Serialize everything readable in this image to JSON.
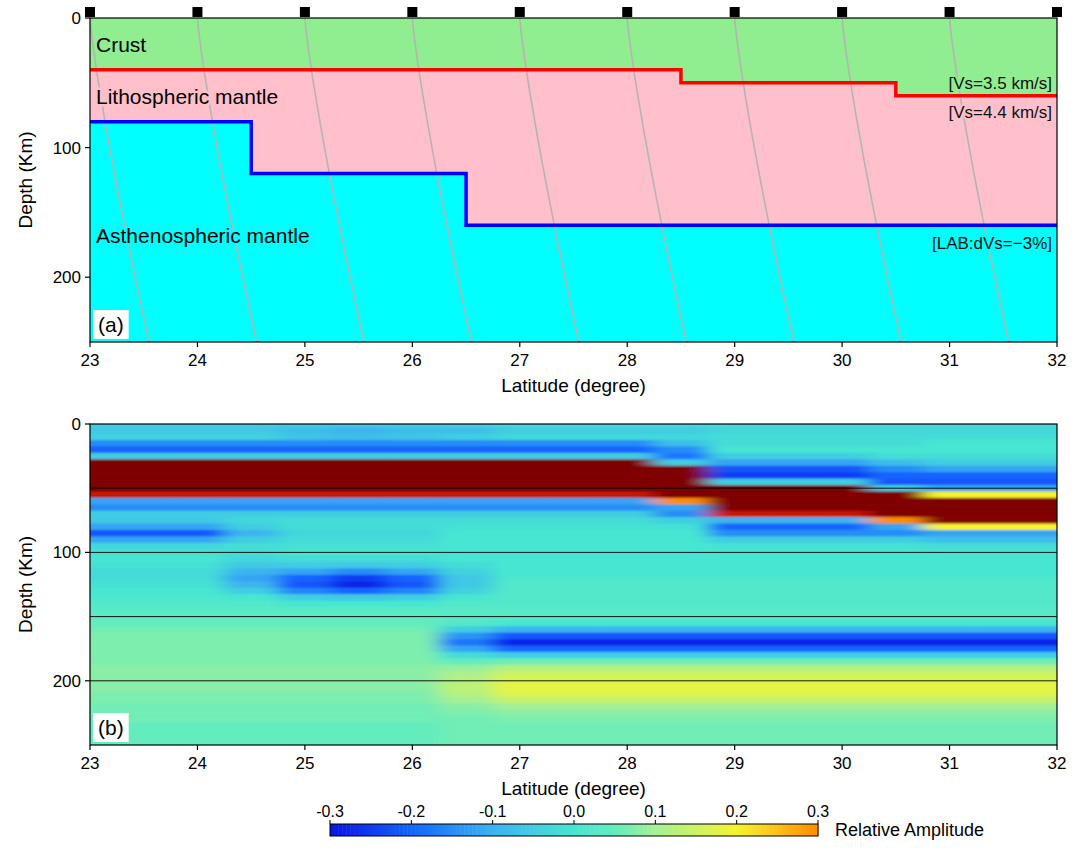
{
  "chart_data": [
    {
      "type": "model",
      "panel_label": "(a)",
      "x_label": "Latitude (degree)",
      "y_label": "Depth (Km)",
      "xlim": [
        23,
        32
      ],
      "ylim": [
        0,
        250
      ],
      "xticks": [
        23,
        24,
        25,
        26,
        27,
        28,
        29,
        30,
        31,
        32
      ],
      "yticks": [
        0,
        100,
        200
      ],
      "layers": [
        {
          "name": "Crust",
          "color": "#90ee90"
        },
        {
          "name": "Lithospheric mantle",
          "color": "#ffc0cb"
        },
        {
          "name": "Asthenospheric mantle",
          "color": "#00ffff"
        }
      ],
      "boundaries": [
        {
          "color": "#ff0000",
          "x_edges": [
            23,
            28.5,
            30.5,
            32
          ],
          "values": [
            40,
            50,
            60
          ]
        },
        {
          "color": "#0000ff",
          "x_edges": [
            23,
            24.5,
            26.5,
            32
          ],
          "values": [
            80,
            120,
            160
          ]
        }
      ],
      "annotations": [
        "[Vs=3.5 km/s]",
        "[Vs=4.4 km/s]",
        "[LAB:dVs=−3%]"
      ],
      "stations": [
        23,
        24,
        25,
        26,
        27,
        28,
        29,
        30,
        31,
        32
      ],
      "ray_end_offset": 0.55
    },
    {
      "type": "heatmap",
      "panel_label": "(b)",
      "x_label": "Latitude (degree)",
      "y_label": "Depth (Km)",
      "xlim": [
        23,
        32
      ],
      "ylim": [
        0,
        250
      ],
      "xticks": [
        23,
        24,
        25,
        26,
        27,
        28,
        29,
        30,
        31,
        32
      ],
      "yticks": [
        0,
        100,
        200
      ],
      "reference_depths": [
        50,
        100,
        150,
        200
      ],
      "x": [
        23,
        23.5,
        24,
        24.5,
        25,
        25.5,
        26,
        26.5,
        27,
        27.5,
        28,
        28.5,
        29,
        29.5,
        30,
        30.5,
        31,
        31.5,
        32
      ],
      "y": [
        0,
        5,
        10,
        15,
        20,
        25,
        30,
        35,
        40,
        45,
        50,
        55,
        60,
        65,
        70,
        75,
        80,
        85,
        90,
        95,
        100,
        105,
        110,
        115,
        120,
        125,
        130,
        135,
        140,
        145,
        150,
        155,
        160,
        165,
        170,
        175,
        180,
        185,
        190,
        195,
        200,
        205,
        210,
        215,
        220,
        225,
        230,
        235,
        240,
        245,
        250
      ],
      "values": [
        [
          -0.05,
          -0.06,
          -0.04,
          -0.15,
          -0.2,
          -0.05,
          0.6,
          1.0,
          1.0,
          1.0,
          0.9,
          0.4,
          -0.12,
          -0.15,
          -0.05,
          -0.06,
          -0.12,
          -0.22,
          -0.12,
          -0.03,
          -0.01,
          0.0,
          -0.01,
          -0.02,
          -0.02,
          -0.01,
          0.0,
          0.01,
          0.02,
          0.03,
          0.04,
          0.05,
          0.06,
          0.07,
          0.07,
          0.07,
          0.07,
          0.07,
          0.08,
          0.08,
          0.08,
          0.08,
          0.07,
          0.07,
          0.06,
          0.06,
          0.06,
          0.05,
          0.05,
          0.05,
          0.05
        ],
        [
          -0.05,
          -0.06,
          -0.04,
          -0.15,
          -0.2,
          -0.05,
          0.6,
          1.0,
          1.0,
          1.0,
          0.9,
          0.4,
          -0.12,
          -0.15,
          -0.05,
          -0.06,
          -0.12,
          -0.22,
          -0.12,
          -0.03,
          -0.01,
          0.0,
          -0.01,
          -0.02,
          -0.02,
          -0.01,
          0.0,
          0.01,
          0.02,
          0.03,
          0.04,
          0.05,
          0.06,
          0.07,
          0.07,
          0.07,
          0.07,
          0.07,
          0.08,
          0.08,
          0.08,
          0.08,
          0.07,
          0.07,
          0.06,
          0.06,
          0.06,
          0.05,
          0.05,
          0.05,
          0.05
        ],
        [
          -0.05,
          -0.06,
          -0.04,
          -0.15,
          -0.2,
          -0.05,
          0.6,
          1.0,
          1.0,
          1.0,
          0.9,
          0.4,
          -0.12,
          -0.15,
          -0.05,
          -0.06,
          -0.12,
          -0.22,
          -0.12,
          -0.03,
          -0.01,
          0.0,
          -0.01,
          -0.02,
          -0.02,
          -0.01,
          0.0,
          0.01,
          0.02,
          0.03,
          0.04,
          0.05,
          0.06,
          0.07,
          0.07,
          0.07,
          0.07,
          0.07,
          0.08,
          0.08,
          0.08,
          0.08,
          0.07,
          0.07,
          0.06,
          0.06,
          0.06,
          0.05,
          0.05,
          0.05,
          0.05
        ],
        [
          -0.05,
          -0.06,
          -0.04,
          -0.15,
          -0.2,
          -0.05,
          0.6,
          1.0,
          1.0,
          1.0,
          0.9,
          0.4,
          -0.12,
          -0.15,
          -0.05,
          -0.03,
          -0.05,
          -0.1,
          -0.05,
          -0.02,
          -0.02,
          -0.03,
          -0.06,
          -0.1,
          -0.12,
          -0.1,
          -0.05,
          0.0,
          0.02,
          0.03,
          0.04,
          0.05,
          0.06,
          0.07,
          0.07,
          0.07,
          0.07,
          0.07,
          0.08,
          0.08,
          0.08,
          0.08,
          0.07,
          0.07,
          0.06,
          0.06,
          0.06,
          0.05,
          0.05,
          0.05,
          0.05
        ],
        [
          -0.05,
          -0.08,
          -0.07,
          -0.15,
          -0.2,
          -0.05,
          0.6,
          1.0,
          1.0,
          1.0,
          0.9,
          0.4,
          -0.12,
          -0.15,
          -0.05,
          -0.02,
          -0.02,
          -0.03,
          -0.02,
          -0.01,
          0.0,
          -0.02,
          -0.05,
          -0.12,
          -0.2,
          -0.22,
          -0.16,
          -0.05,
          0.0,
          0.03,
          0.04,
          0.05,
          0.06,
          0.07,
          0.07,
          0.07,
          0.07,
          0.07,
          0.08,
          0.08,
          0.08,
          0.08,
          0.07,
          0.07,
          0.06,
          0.06,
          0.06,
          0.05,
          0.05,
          0.05,
          0.05
        ],
        [
          -0.05,
          -0.1,
          -0.08,
          -0.15,
          -0.2,
          -0.05,
          0.6,
          1.0,
          1.0,
          1.0,
          0.9,
          0.4,
          -0.12,
          -0.15,
          -0.05,
          -0.02,
          -0.02,
          -0.03,
          -0.02,
          -0.01,
          0.0,
          -0.02,
          -0.06,
          -0.15,
          -0.25,
          -0.28,
          -0.2,
          -0.06,
          0.0,
          0.03,
          0.04,
          0.05,
          0.06,
          0.07,
          0.07,
          0.07,
          0.07,
          0.07,
          0.08,
          0.08,
          0.08,
          0.08,
          0.07,
          0.07,
          0.06,
          0.06,
          0.06,
          0.05,
          0.05,
          0.05,
          0.05
        ],
        [
          -0.05,
          -0.08,
          -0.07,
          -0.15,
          -0.2,
          -0.05,
          0.6,
          1.0,
          1.0,
          1.0,
          0.9,
          0.4,
          -0.12,
          -0.15,
          -0.05,
          -0.02,
          -0.02,
          -0.03,
          -0.02,
          -0.01,
          0.0,
          -0.02,
          -0.05,
          -0.12,
          -0.2,
          -0.22,
          -0.16,
          -0.05,
          0.0,
          0.03,
          0.04,
          0.05,
          0.06,
          0.07,
          0.07,
          0.07,
          0.07,
          0.07,
          0.08,
          0.08,
          0.08,
          0.08,
          0.07,
          0.07,
          0.06,
          0.06,
          0.06,
          0.05,
          0.05,
          0.05,
          0.05
        ],
        [
          -0.04,
          -0.08,
          -0.05,
          -0.15,
          -0.2,
          -0.05,
          0.6,
          1.0,
          1.0,
          1.0,
          0.9,
          0.4,
          -0.12,
          -0.15,
          -0.05,
          -0.02,
          -0.01,
          0.0,
          0.0,
          0.0,
          0.0,
          0.0,
          -0.02,
          -0.04,
          -0.06,
          -0.06,
          -0.04,
          0.0,
          0.02,
          0.03,
          0.03,
          0.02,
          -0.05,
          -0.14,
          -0.18,
          -0.12,
          -0.02,
          0.05,
          0.09,
          0.11,
          0.12,
          0.13,
          0.12,
          0.1,
          0.08,
          0.07,
          0.06,
          0.06,
          0.06,
          0.06,
          0.06
        ],
        [
          -0.03,
          -0.05,
          -0.03,
          -0.15,
          -0.2,
          -0.05,
          0.6,
          1.0,
          1.0,
          1.0,
          0.9,
          0.4,
          -0.12,
          -0.15,
          -0.05,
          -0.02,
          -0.01,
          0.0,
          0.0,
          0.0,
          0.0,
          0.0,
          0.0,
          0.0,
          0.01,
          0.02,
          0.02,
          0.02,
          0.02,
          0.03,
          0.03,
          0.0,
          -0.1,
          -0.22,
          -0.28,
          -0.2,
          -0.05,
          0.06,
          0.12,
          0.15,
          0.17,
          0.18,
          0.17,
          0.14,
          0.1,
          0.08,
          0.07,
          0.06,
          0.06,
          0.06,
          0.06
        ],
        [
          -0.03,
          -0.05,
          -0.03,
          -0.15,
          -0.2,
          -0.05,
          0.6,
          1.0,
          1.0,
          1.0,
          0.9,
          0.4,
          -0.12,
          -0.15,
          -0.05,
          -0.02,
          -0.01,
          0.0,
          0.0,
          0.0,
          0.0,
          0.0,
          0.0,
          0.0,
          0.01,
          0.02,
          0.02,
          0.02,
          0.02,
          0.03,
          0.03,
          0.0,
          -0.1,
          -0.22,
          -0.28,
          -0.2,
          -0.05,
          0.06,
          0.12,
          0.15,
          0.17,
          0.18,
          0.17,
          0.14,
          0.1,
          0.08,
          0.07,
          0.06,
          0.06,
          0.06,
          0.06
        ],
        [
          -0.03,
          -0.05,
          -0.03,
          -0.15,
          -0.2,
          -0.05,
          0.6,
          1.0,
          1.0,
          1.0,
          0.9,
          0.4,
          -0.12,
          -0.15,
          -0.05,
          -0.02,
          -0.01,
          0.0,
          0.0,
          0.0,
          0.0,
          0.0,
          0.0,
          0.0,
          0.01,
          0.02,
          0.02,
          0.02,
          0.02,
          0.03,
          0.03,
          0.0,
          -0.1,
          -0.22,
          -0.28,
          -0.2,
          -0.05,
          0.06,
          0.12,
          0.15,
          0.17,
          0.18,
          0.17,
          0.14,
          0.1,
          0.08,
          0.07,
          0.06,
          0.06,
          0.06,
          0.06
        ],
        [
          -0.03,
          -0.05,
          -0.03,
          -0.08,
          -0.15,
          -0.18,
          -0.05,
          0.5,
          1.0,
          1.0,
          1.0,
          0.9,
          0.3,
          -0.12,
          -0.15,
          -0.05,
          -0.01,
          0.0,
          0.0,
          0.0,
          0.0,
          0.0,
          0.0,
          0.0,
          0.01,
          0.02,
          0.02,
          0.02,
          0.02,
          0.03,
          0.03,
          0.0,
          -0.1,
          -0.22,
          -0.28,
          -0.2,
          -0.05,
          0.06,
          0.12,
          0.15,
          0.17,
          0.18,
          0.17,
          0.14,
          0.1,
          0.08,
          0.07,
          0.06,
          0.06,
          0.06,
          0.06
        ],
        [
          -0.02,
          -0.03,
          -0.02,
          -0.02,
          0.0,
          -0.05,
          -0.12,
          -0.22,
          -0.25,
          -0.05,
          0.6,
          1.0,
          1.0,
          0.9,
          0.4,
          -0.1,
          -0.2,
          -0.15,
          -0.05,
          -0.01,
          0.0,
          0.0,
          0.0,
          0.0,
          0.01,
          0.02,
          0.02,
          0.02,
          0.02,
          0.03,
          0.03,
          0.0,
          -0.1,
          -0.22,
          -0.28,
          -0.2,
          -0.05,
          0.06,
          0.12,
          0.15,
          0.17,
          0.18,
          0.17,
          0.14,
          0.1,
          0.08,
          0.07,
          0.06,
          0.06,
          0.06,
          0.06
        ],
        [
          -0.02,
          -0.03,
          -0.02,
          -0.02,
          0.0,
          -0.05,
          -0.12,
          -0.22,
          -0.25,
          -0.05,
          0.6,
          1.0,
          1.0,
          0.9,
          0.4,
          -0.1,
          -0.2,
          -0.15,
          -0.05,
          -0.01,
          0.0,
          0.0,
          0.0,
          0.0,
          0.01,
          0.02,
          0.02,
          0.02,
          0.02,
          0.03,
          0.03,
          0.0,
          -0.1,
          -0.22,
          -0.28,
          -0.2,
          -0.05,
          0.06,
          0.12,
          0.15,
          0.17,
          0.18,
          0.17,
          0.14,
          0.1,
          0.08,
          0.07,
          0.06,
          0.06,
          0.06,
          0.06
        ],
        [
          -0.02,
          -0.03,
          -0.02,
          -0.02,
          0.0,
          -0.05,
          -0.12,
          -0.22,
          -0.25,
          -0.05,
          0.6,
          1.0,
          1.0,
          0.9,
          0.4,
          -0.1,
          -0.2,
          -0.15,
          -0.05,
          -0.01,
          0.0,
          0.0,
          0.0,
          0.0,
          0.01,
          0.02,
          0.02,
          0.02,
          0.02,
          0.03,
          0.03,
          0.0,
          -0.1,
          -0.22,
          -0.28,
          -0.2,
          -0.05,
          0.06,
          0.12,
          0.15,
          0.17,
          0.18,
          0.17,
          0.14,
          0.1,
          0.08,
          0.07,
          0.06,
          0.06,
          0.06,
          0.06
        ],
        [
          -0.02,
          -0.03,
          -0.02,
          -0.02,
          0.0,
          -0.02,
          -0.08,
          -0.15,
          -0.2,
          -0.22,
          -0.05,
          0.5,
          1.0,
          1.0,
          0.9,
          0.3,
          -0.12,
          -0.15,
          -0.05,
          -0.01,
          0.0,
          0.0,
          0.0,
          0.0,
          0.01,
          0.02,
          0.02,
          0.02,
          0.02,
          0.03,
          0.03,
          0.0,
          -0.1,
          -0.22,
          -0.28,
          -0.2,
          -0.05,
          0.06,
          0.12,
          0.15,
          0.17,
          0.18,
          0.17,
          0.14,
          0.1,
          0.08,
          0.07,
          0.06,
          0.06,
          0.06,
          0.06
        ],
        [
          -0.02,
          -0.03,
          -0.02,
          0.0,
          0.0,
          -0.02,
          -0.05,
          -0.12,
          -0.2,
          -0.22,
          -0.12,
          0.2,
          0.8,
          1.0,
          1.0,
          0.9,
          0.2,
          -0.12,
          -0.08,
          -0.02,
          0.0,
          0.0,
          0.0,
          0.0,
          0.01,
          0.02,
          0.02,
          0.02,
          0.02,
          0.03,
          0.03,
          0.0,
          -0.1,
          -0.22,
          -0.28,
          -0.2,
          -0.05,
          0.06,
          0.12,
          0.15,
          0.17,
          0.18,
          0.17,
          0.14,
          0.1,
          0.08,
          0.07,
          0.06,
          0.06,
          0.06,
          0.06
        ],
        [
          -0.02,
          -0.03,
          -0.02,
          0.0,
          0.0,
          -0.02,
          -0.05,
          -0.12,
          -0.2,
          -0.22,
          -0.12,
          0.2,
          0.8,
          1.0,
          1.0,
          0.9,
          0.2,
          -0.12,
          -0.08,
          -0.02,
          0.0,
          0.0,
          0.0,
          0.0,
          0.01,
          0.02,
          0.02,
          0.02,
          0.02,
          0.03,
          0.03,
          0.0,
          -0.1,
          -0.22,
          -0.28,
          -0.2,
          -0.05,
          0.06,
          0.12,
          0.15,
          0.17,
          0.18,
          0.17,
          0.14,
          0.1,
          0.08,
          0.07,
          0.06,
          0.06,
          0.06,
          0.06
        ],
        [
          -0.02,
          -0.03,
          -0.02,
          0.0,
          0.0,
          -0.02,
          -0.05,
          -0.12,
          -0.2,
          -0.22,
          -0.12,
          0.2,
          0.8,
          1.0,
          1.0,
          0.9,
          0.2,
          -0.12,
          -0.08,
          -0.02,
          0.0,
          0.0,
          0.0,
          0.0,
          0.01,
          0.02,
          0.02,
          0.02,
          0.02,
          0.03,
          0.03,
          0.0,
          -0.1,
          -0.22,
          -0.28,
          -0.2,
          -0.05,
          0.06,
          0.12,
          0.15,
          0.17,
          0.18,
          0.17,
          0.14,
          0.1,
          0.08,
          0.07,
          0.06,
          0.06,
          0.06,
          0.06
        ]
      ],
      "colorbar": {
        "label": "Relative Amplitude",
        "range": [
          -0.3,
          0.3
        ],
        "ticks": [
          -0.3,
          -0.2,
          -0.1,
          {
            "value": 0,
            "label": "0.0"
          },
          0.1,
          0.2,
          0.3
        ]
      }
    }
  ]
}
